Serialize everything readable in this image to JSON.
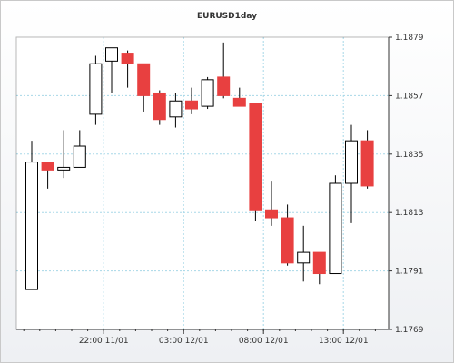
{
  "chart_data": {
    "type": "candlestick",
    "title": "EURUSD1day",
    "y_range": [
      1.1769,
      1.1879
    ],
    "y_ticks": [
      "1.1879",
      "1.1857",
      "1.1835",
      "1.1813",
      "1.1791",
      "1.1769"
    ],
    "x_ticks": [
      {
        "label": "22:00 11/01",
        "at_candle": 4.5
      },
      {
        "label": "03:00 12/01",
        "at_candle": 9.5
      },
      {
        "label": "08:00 12/01",
        "at_candle": 14.5
      },
      {
        "label": "13:00 12/01",
        "at_candle": 19.5
      }
    ],
    "grid": true,
    "colors": {
      "up": "#ffffff",
      "down": "#e84040",
      "outline": "#000000",
      "grid": "#a8d8e8",
      "axis": "#333333"
    },
    "candles": [
      {
        "o": 1.1784,
        "h": 1.184,
        "l": 1.1784,
        "c": 1.1832
      },
      {
        "o": 1.1832,
        "h": 1.1832,
        "l": 1.1822,
        "c": 1.1829
      },
      {
        "o": 1.1829,
        "h": 1.1844,
        "l": 1.1826,
        "c": 1.183
      },
      {
        "o": 1.183,
        "h": 1.1844,
        "l": 1.183,
        "c": 1.1838
      },
      {
        "o": 1.185,
        "h": 1.1872,
        "l": 1.1846,
        "c": 1.1869
      },
      {
        "o": 1.187,
        "h": 1.1875,
        "l": 1.1858,
        "c": 1.1875
      },
      {
        "o": 1.1873,
        "h": 1.1874,
        "l": 1.186,
        "c": 1.1869
      },
      {
        "o": 1.1869,
        "h": 1.1869,
        "l": 1.1851,
        "c": 1.1857
      },
      {
        "o": 1.1858,
        "h": 1.1859,
        "l": 1.1846,
        "c": 1.1848
      },
      {
        "o": 1.1849,
        "h": 1.1858,
        "l": 1.1845,
        "c": 1.1855
      },
      {
        "o": 1.1855,
        "h": 1.186,
        "l": 1.185,
        "c": 1.1852
      },
      {
        "o": 1.1853,
        "h": 1.1864,
        "l": 1.1852,
        "c": 1.1863
      },
      {
        "o": 1.1864,
        "h": 1.1877,
        "l": 1.1856,
        "c": 1.1857
      },
      {
        "o": 1.1856,
        "h": 1.186,
        "l": 1.1853,
        "c": 1.1853
      },
      {
        "o": 1.1854,
        "h": 1.1854,
        "l": 1.181,
        "c": 1.1814
      },
      {
        "o": 1.1814,
        "h": 1.1825,
        "l": 1.1808,
        "c": 1.1811
      },
      {
        "o": 1.1811,
        "h": 1.1816,
        "l": 1.1793,
        "c": 1.1794
      },
      {
        "o": 1.1794,
        "h": 1.1808,
        "l": 1.1787,
        "c": 1.1798
      },
      {
        "o": 1.1798,
        "h": 1.1798,
        "l": 1.1786,
        "c": 1.179
      },
      {
        "o": 1.179,
        "h": 1.1827,
        "l": 1.179,
        "c": 1.1824
      },
      {
        "o": 1.1824,
        "h": 1.1846,
        "l": 1.1809,
        "c": 1.184
      },
      {
        "o": 1.184,
        "h": 1.1844,
        "l": 1.1822,
        "c": 1.1823
      }
    ]
  }
}
